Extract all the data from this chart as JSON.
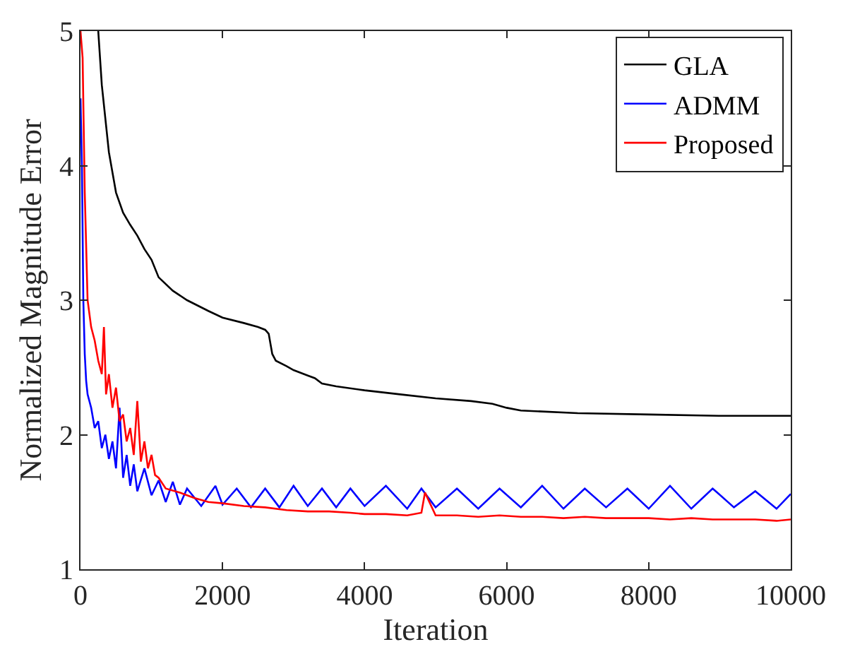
{
  "chart_data": {
    "type": "line",
    "xlabel": "Iteration",
    "ylabel": "Normalized Magnitude Error",
    "xlim": [
      0,
      10000
    ],
    "ylim": [
      1,
      5
    ],
    "xticks": [
      0,
      2000,
      4000,
      6000,
      8000,
      10000
    ],
    "yticks": [
      1,
      2,
      3,
      4,
      5
    ],
    "legend": "top right",
    "marker": "none",
    "line_style": "solid",
    "series": [
      {
        "name": "GLA",
        "color": "#000000",
        "x": [
          250,
          300,
          400,
          500,
          600,
          700,
          800,
          900,
          1000,
          1100,
          1300,
          1500,
          1800,
          2000,
          2300,
          2500,
          2600,
          2650,
          2700,
          2750,
          2900,
          3000,
          3200,
          3300,
          3400,
          3600,
          4000,
          4500,
          5000,
          5500,
          5800,
          6000,
          6200,
          7000,
          8000,
          9000,
          10000
        ],
        "values": [
          5,
          4.6,
          4.1,
          3.8,
          3.65,
          3.56,
          3.48,
          3.38,
          3.3,
          3.17,
          3.07,
          3.0,
          2.92,
          2.87,
          2.83,
          2.8,
          2.78,
          2.75,
          2.6,
          2.55,
          2.51,
          2.48,
          2.44,
          2.42,
          2.38,
          2.36,
          2.33,
          2.3,
          2.27,
          2.25,
          2.23,
          2.2,
          2.18,
          2.16,
          2.15,
          2.14,
          2.14
        ]
      },
      {
        "name": "ADMM",
        "color": "#0000ff",
        "x": [
          0,
          20,
          40,
          60,
          80,
          100,
          150,
          200,
          250,
          300,
          350,
          400,
          450,
          500,
          550,
          600,
          650,
          700,
          750,
          800,
          900,
          1000,
          1100,
          1200,
          1300,
          1400,
          1500,
          1700,
          1900,
          2000,
          2200,
          2400,
          2600,
          2800,
          3000,
          3200,
          3400,
          3600,
          3800,
          4000,
          4300,
          4600,
          4800,
          5000,
          5300,
          5600,
          5900,
          6200,
          6500,
          6800,
          7100,
          7400,
          7700,
          8000,
          8300,
          8600,
          8900,
          9200,
          9500,
          9800,
          10000
        ],
        "values": [
          4.5,
          4.0,
          3.0,
          2.6,
          2.4,
          2.3,
          2.2,
          2.05,
          2.1,
          1.9,
          2.0,
          1.82,
          1.95,
          1.75,
          2.2,
          1.68,
          1.85,
          1.62,
          1.78,
          1.58,
          1.75,
          1.55,
          1.66,
          1.5,
          1.65,
          1.48,
          1.6,
          1.47,
          1.62,
          1.48,
          1.6,
          1.46,
          1.6,
          1.46,
          1.62,
          1.47,
          1.6,
          1.46,
          1.6,
          1.47,
          1.62,
          1.45,
          1.6,
          1.46,
          1.6,
          1.45,
          1.6,
          1.46,
          1.62,
          1.45,
          1.6,
          1.46,
          1.6,
          1.45,
          1.62,
          1.45,
          1.6,
          1.46,
          1.58,
          1.45,
          1.56
        ]
      },
      {
        "name": "Proposed",
        "color": "#ff0000",
        "x": [
          0,
          30,
          60,
          100,
          150,
          200,
          250,
          300,
          330,
          360,
          400,
          450,
          500,
          550,
          600,
          650,
          700,
          750,
          800,
          850,
          900,
          950,
          1000,
          1050,
          1100,
          1200,
          1400,
          1600,
          1800,
          2000,
          2300,
          2600,
          2900,
          3200,
          3500,
          3800,
          4000,
          4300,
          4600,
          4800,
          4850,
          5000,
          5300,
          5600,
          5900,
          6200,
          6500,
          6800,
          7100,
          7400,
          7700,
          8000,
          8300,
          8600,
          8900,
          9200,
          9500,
          9800,
          10000
        ],
        "values": [
          5,
          4.8,
          3.8,
          3.0,
          2.8,
          2.7,
          2.55,
          2.45,
          2.8,
          2.3,
          2.45,
          2.2,
          2.35,
          2.1,
          2.15,
          1.95,
          2.05,
          1.85,
          2.25,
          1.8,
          1.95,
          1.75,
          1.85,
          1.7,
          1.68,
          1.6,
          1.57,
          1.53,
          1.5,
          1.49,
          1.47,
          1.46,
          1.44,
          1.43,
          1.43,
          1.42,
          1.41,
          1.41,
          1.4,
          1.42,
          1.57,
          1.4,
          1.4,
          1.39,
          1.4,
          1.39,
          1.39,
          1.38,
          1.39,
          1.38,
          1.38,
          1.38,
          1.37,
          1.38,
          1.37,
          1.37,
          1.37,
          1.36,
          1.37
        ]
      }
    ]
  }
}
